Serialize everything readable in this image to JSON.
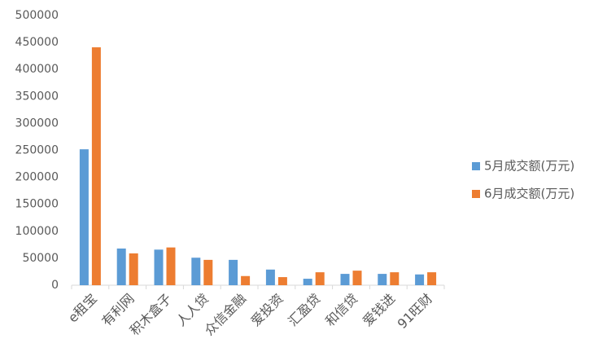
{
  "chart_data": {
    "type": "bar",
    "categories": [
      "e租宝",
      "有利网",
      "积木盒子",
      "人人贷",
      "众信金融",
      "爱投资",
      "汇盈贷",
      "和信贷",
      "爱钱进",
      "91旺财"
    ],
    "series": [
      {
        "name": "5月成交额(万元)",
        "color": "#5b9bd5",
        "values": [
          252000,
          68000,
          66000,
          51000,
          47000,
          29000,
          12000,
          21000,
          21000,
          20000
        ]
      },
      {
        "name": "6月成交额(万元)",
        "color": "#ed7d31",
        "values": [
          441000,
          59000,
          70000,
          47000,
          17000,
          15000,
          24000,
          27000,
          24000,
          24000
        ]
      }
    ],
    "ylim": [
      0,
      500000
    ],
    "yticks": [
      0,
      50000,
      100000,
      150000,
      200000,
      250000,
      300000,
      350000,
      400000,
      450000,
      500000
    ],
    "grid": false,
    "legend": "right"
  }
}
